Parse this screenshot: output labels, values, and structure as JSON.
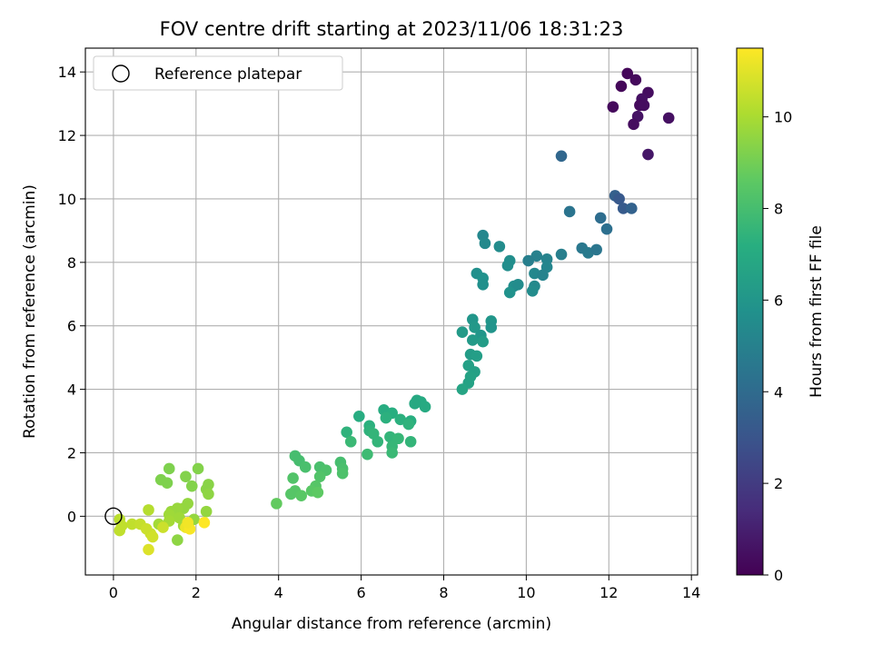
{
  "chart_data": {
    "type": "scatter",
    "title": "FOV centre drift starting at 2023/11/06 18:31:23",
    "xlabel": "Angular distance from reference (arcmin)",
    "ylabel": "Rotation from reference (arcmin)",
    "xlim": [
      -0.68,
      14.15
    ],
    "ylim": [
      -1.85,
      14.75
    ],
    "xticks": [
      "0",
      "2",
      "4",
      "6",
      "8",
      "10",
      "12",
      "14"
    ],
    "yticks": [
      "0",
      "2",
      "4",
      "6",
      "8",
      "10",
      "12",
      "14"
    ],
    "grid": true,
    "legend": {
      "placement": "top-left",
      "entries": [
        "Reference platepar"
      ]
    },
    "reference": {
      "x": 0,
      "y": 0
    },
    "colorbar": {
      "label": "Hours from first FF file",
      "min": 0,
      "max": 11.5,
      "ticks": [
        "0",
        "2",
        "4",
        "6",
        "8",
        "10"
      ],
      "colormap": "viridis"
    },
    "series": [
      {
        "points": [
          [
            12.45,
            13.95
          ],
          [
            12.65,
            13.75
          ],
          [
            12.3,
            13.55
          ],
          [
            12.95,
            13.35
          ],
          [
            12.8,
            13.15
          ],
          [
            12.75,
            12.95
          ],
          [
            12.85,
            12.95
          ],
          [
            12.1,
            12.9
          ],
          [
            12.7,
            12.6
          ],
          [
            13.45,
            12.55
          ],
          [
            12.6,
            12.35
          ],
          [
            12.95,
            11.4
          ],
          [
            10.85,
            11.35
          ],
          [
            12.15,
            10.1
          ],
          [
            12.25,
            10.0
          ],
          [
            12.35,
            9.7
          ],
          [
            12.55,
            9.7
          ],
          [
            11.05,
            9.6
          ],
          [
            11.8,
            9.4
          ],
          [
            11.95,
            9.05
          ],
          [
            11.35,
            8.45
          ],
          [
            11.5,
            8.3
          ],
          [
            11.7,
            8.4
          ],
          [
            10.85,
            8.25
          ],
          [
            10.25,
            8.2
          ],
          [
            10.05,
            8.05
          ],
          [
            10.5,
            8.1
          ],
          [
            10.5,
            7.85
          ],
          [
            10.2,
            7.65
          ],
          [
            10.4,
            7.6
          ],
          [
            10.2,
            7.25
          ],
          [
            10.15,
            7.1
          ],
          [
            8.95,
            8.85
          ],
          [
            9.0,
            8.6
          ],
          [
            9.35,
            8.5
          ],
          [
            9.6,
            8.05
          ],
          [
            9.55,
            7.9
          ],
          [
            8.8,
            7.65
          ],
          [
            8.95,
            7.5
          ],
          [
            8.95,
            7.3
          ],
          [
            9.7,
            7.25
          ],
          [
            9.8,
            7.3
          ],
          [
            9.6,
            7.05
          ],
          [
            8.7,
            6.2
          ],
          [
            9.15,
            6.15
          ],
          [
            9.15,
            5.95
          ],
          [
            8.75,
            5.95
          ],
          [
            8.45,
            5.8
          ],
          [
            8.9,
            5.7
          ],
          [
            8.7,
            5.55
          ],
          [
            8.95,
            5.5
          ],
          [
            8.65,
            5.1
          ],
          [
            8.8,
            5.05
          ],
          [
            8.6,
            4.75
          ],
          [
            8.75,
            4.55
          ],
          [
            8.65,
            4.4
          ],
          [
            8.6,
            4.2
          ],
          [
            8.45,
            4.0
          ],
          [
            7.35,
            3.65
          ],
          [
            7.45,
            3.6
          ],
          [
            7.55,
            3.45
          ],
          [
            7.3,
            3.55
          ],
          [
            6.55,
            3.35
          ],
          [
            6.75,
            3.25
          ],
          [
            5.95,
            3.15
          ],
          [
            6.6,
            3.1
          ],
          [
            6.95,
            3.05
          ],
          [
            7.2,
            3.0
          ],
          [
            7.15,
            2.9
          ],
          [
            6.2,
            2.85
          ],
          [
            6.2,
            2.7
          ],
          [
            6.3,
            2.6
          ],
          [
            5.65,
            2.65
          ],
          [
            6.7,
            2.5
          ],
          [
            6.9,
            2.45
          ],
          [
            6.4,
            2.35
          ],
          [
            7.2,
            2.35
          ],
          [
            5.75,
            2.35
          ],
          [
            6.75,
            2.2
          ],
          [
            6.75,
            2.0
          ],
          [
            6.15,
            1.95
          ],
          [
            4.4,
            1.9
          ],
          [
            4.5,
            1.75
          ],
          [
            4.65,
            1.55
          ],
          [
            5.0,
            1.55
          ],
          [
            5.15,
            1.45
          ],
          [
            5.5,
            1.7
          ],
          [
            5.55,
            1.5
          ],
          [
            5.55,
            1.35
          ],
          [
            5.0,
            1.25
          ],
          [
            4.35,
            1.2
          ],
          [
            4.9,
            0.95
          ],
          [
            4.4,
            0.8
          ],
          [
            4.3,
            0.7
          ],
          [
            4.55,
            0.65
          ],
          [
            4.8,
            0.8
          ],
          [
            4.95,
            0.75
          ],
          [
            3.95,
            0.4
          ],
          [
            2.05,
            1.5
          ],
          [
            1.35,
            1.5
          ],
          [
            1.75,
            1.25
          ],
          [
            1.15,
            1.15
          ],
          [
            1.3,
            1.05
          ],
          [
            2.3,
            1.0
          ],
          [
            2.25,
            0.85
          ],
          [
            2.3,
            0.7
          ],
          [
            1.9,
            0.95
          ],
          [
            1.8,
            0.4
          ],
          [
            1.7,
            0.25
          ],
          [
            1.55,
            0.25
          ],
          [
            1.4,
            0.15
          ],
          [
            1.35,
            0.05
          ],
          [
            1.6,
            -0.05
          ],
          [
            1.95,
            -0.1
          ],
          [
            1.35,
            -0.15
          ],
          [
            1.1,
            -0.25
          ],
          [
            1.7,
            -0.3
          ],
          [
            1.55,
            -0.75
          ],
          [
            2.25,
            0.15
          ],
          [
            0.85,
            0.2
          ],
          [
            0.15,
            -0.1
          ],
          [
            0.2,
            -0.3
          ],
          [
            0.45,
            -0.25
          ],
          [
            0.65,
            -0.25
          ],
          [
            0.15,
            -0.45
          ],
          [
            0.8,
            -0.4
          ],
          [
            0.9,
            -0.55
          ],
          [
            0.95,
            -0.65
          ],
          [
            0.85,
            -1.05
          ],
          [
            1.2,
            -0.35
          ],
          [
            1.75,
            -0.35
          ],
          [
            1.85,
            -0.4
          ],
          [
            2.2,
            -0.2
          ],
          [
            1.8,
            -0.2
          ]
        ],
        "hours": [
          0.2,
          0.3,
          0.2,
          0.4,
          0.5,
          0.3,
          0.4,
          0.3,
          0.6,
          0.5,
          0.4,
          0.7,
          3.8,
          3.5,
          3.2,
          3.3,
          3.6,
          4.4,
          4.1,
          4.2,
          4.6,
          4.7,
          4.5,
          4.9,
          5.0,
          4.9,
          5.1,
          5.2,
          5.3,
          5.1,
          5.4,
          5.5,
          5.3,
          5.4,
          5.5,
          5.6,
          5.6,
          5.7,
          5.8,
          5.7,
          5.6,
          5.5,
          5.8,
          6.0,
          6.0,
          5.9,
          6.1,
          6.2,
          6.0,
          6.2,
          6.3,
          6.3,
          6.4,
          6.5,
          6.5,
          6.6,
          6.6,
          6.7,
          6.9,
          7.0,
          7.0,
          6.9,
          7.1,
          7.2,
          7.1,
          7.3,
          7.3,
          7.2,
          7.4,
          7.3,
          7.4,
          7.5,
          7.4,
          7.5,
          7.6,
          7.5,
          7.5,
          7.7,
          7.6,
          7.7,
          7.8,
          8.0,
          8.0,
          8.1,
          8.1,
          8.2,
          8.0,
          8.1,
          8.2,
          8.3,
          8.3,
          8.4,
          8.4,
          8.4,
          8.5,
          8.5,
          8.6,
          8.7,
          9.3,
          9.2,
          9.3,
          9.2,
          9.2,
          9.4,
          9.4,
          9.5,
          9.3,
          9.6,
          9.6,
          9.7,
          9.7,
          9.8,
          9.8,
          9.6,
          9.9,
          9.9,
          9.8,
          9.5,
          9.6,
          10.2,
          10.3,
          10.4,
          10.4,
          10.5,
          10.4,
          10.6,
          10.6,
          10.7,
          10.9,
          10.6,
          11.2,
          11.4,
          11.5,
          11.3
        ]
      }
    ]
  }
}
